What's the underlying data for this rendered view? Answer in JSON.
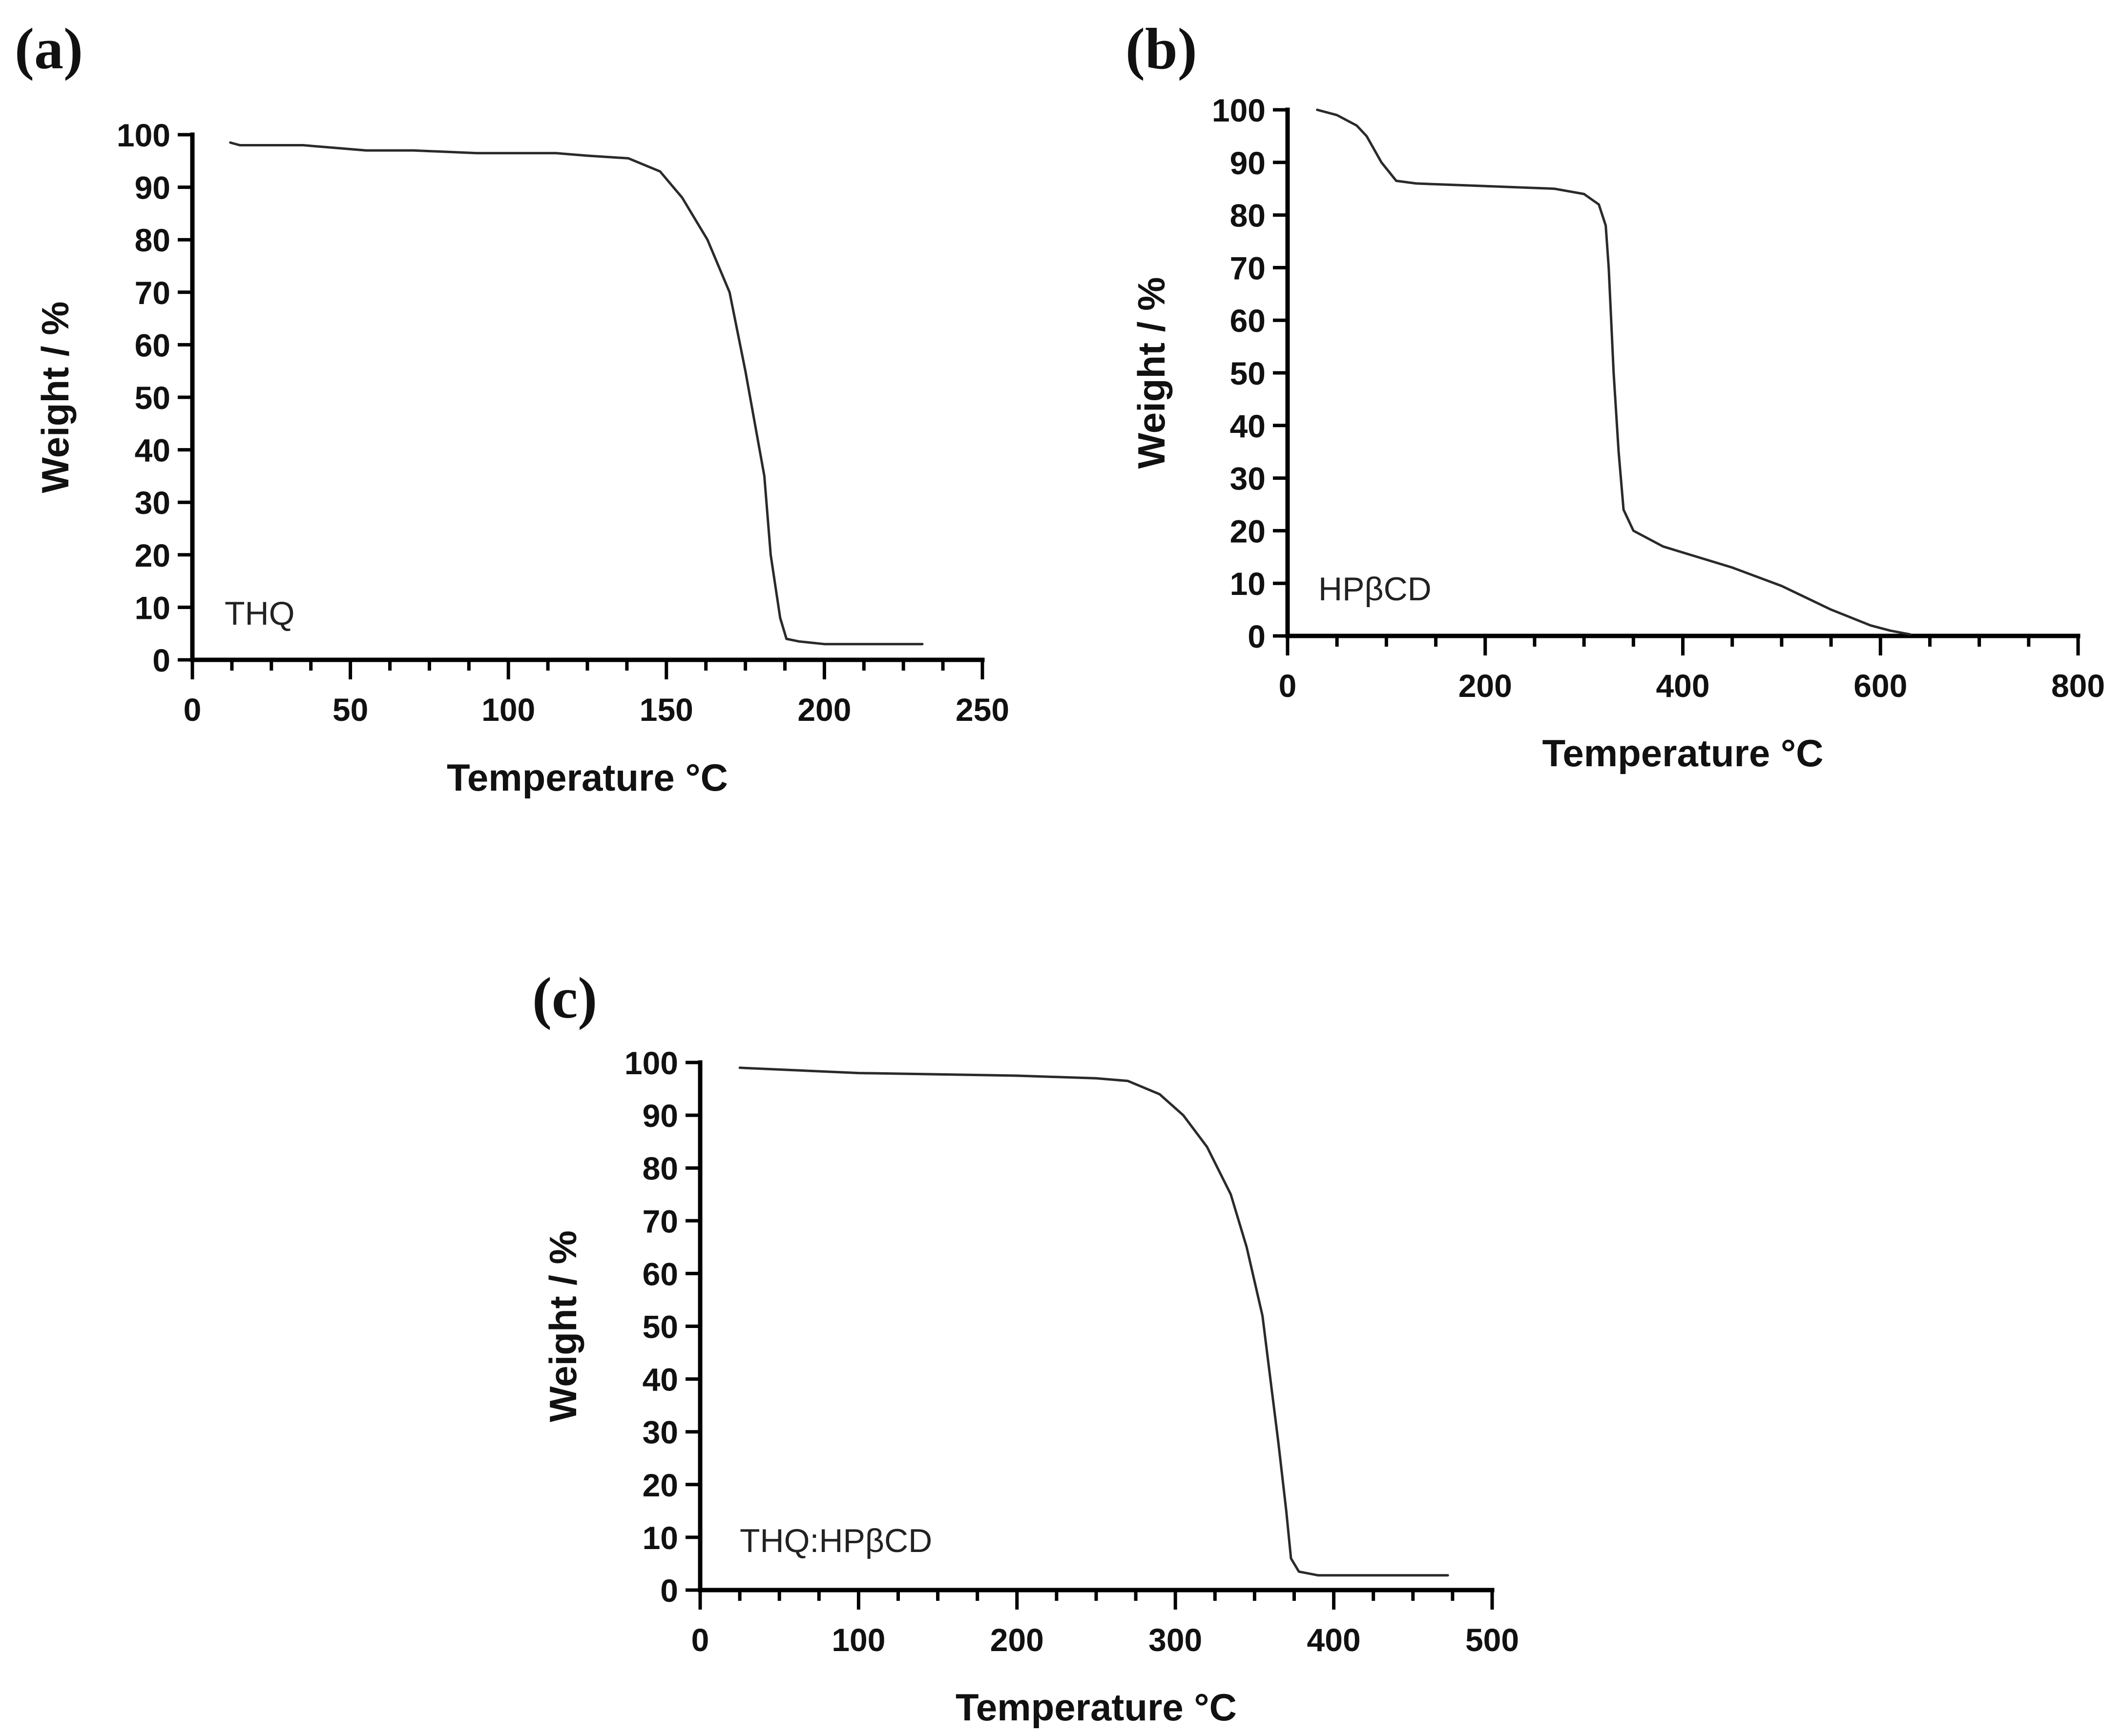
{
  "figure": {
    "panels": [
      {
        "label": "(a)",
        "annotation": "THQ",
        "xlabel": "Temperature °C",
        "ylabel": "Weight / %"
      },
      {
        "label": "(b)",
        "annotation": "HPβCD",
        "xlabel": "Temperature °C",
        "ylabel": "Weight / %"
      },
      {
        "label": "(c)",
        "annotation": "THQ:HPβCD",
        "xlabel": "Temperature °C",
        "ylabel": "Weight / %"
      }
    ]
  },
  "chart_data": [
    {
      "type": "line",
      "panel": "(a)",
      "title": "",
      "annotation": "THQ",
      "xlabel": "Temperature °C",
      "ylabel": "Weight / %",
      "xlim": [
        0,
        250
      ],
      "ylim": [
        0,
        100
      ],
      "xticks": [
        0,
        50,
        100,
        150,
        200,
        250
      ],
      "yticks": [
        0,
        10,
        20,
        30,
        40,
        50,
        60,
        70,
        80,
        90,
        100
      ],
      "x_minor_step": 12.5,
      "grid": false,
      "legend": null,
      "series": [
        {
          "name": "THQ",
          "color": "#2a2a2a",
          "x": [
            12,
            15,
            35,
            45,
            55,
            70,
            90,
            115,
            125,
            138,
            148,
            155,
            163,
            170,
            175,
            178,
            181,
            183,
            186,
            188,
            192,
            200,
            231
          ],
          "y": [
            98.5,
            98,
            98,
            97.5,
            97,
            97,
            96.5,
            96.5,
            96,
            95.5,
            93,
            88,
            80,
            70,
            55,
            45,
            35,
            20,
            8,
            4,
            3.5,
            3,
            3
          ]
        }
      ]
    },
    {
      "type": "line",
      "panel": "(b)",
      "title": "",
      "annotation": "HPβCD",
      "xlabel": "Temperature °C",
      "ylabel": "Weight / %",
      "xlim": [
        0,
        800
      ],
      "ylim": [
        0,
        100
      ],
      "xticks": [
        0,
        200,
        400,
        600,
        800
      ],
      "yticks": [
        0,
        10,
        20,
        30,
        40,
        50,
        60,
        70,
        80,
        90,
        100
      ],
      "x_minor_step": 50,
      "grid": false,
      "legend": null,
      "series": [
        {
          "name": "HPβCD",
          "color": "#2a2a2a",
          "x": [
            30,
            50,
            70,
            80,
            95,
            110,
            130,
            200,
            270,
            300,
            315,
            322,
            325,
            330,
            335,
            340,
            350,
            380,
            450,
            500,
            550,
            590,
            610,
            630
          ],
          "y": [
            100,
            99,
            97,
            95,
            90,
            86.5,
            86,
            85.5,
            85,
            84,
            82,
            78,
            70,
            50,
            35,
            24,
            20,
            17,
            13,
            9.5,
            5,
            2,
            1,
            0.3
          ]
        }
      ]
    },
    {
      "type": "line",
      "panel": "(c)",
      "title": "",
      "annotation": "THQ:HPβCD",
      "xlabel": "Temperature °C",
      "ylabel": "Weight / %",
      "xlim": [
        0,
        500
      ],
      "ylim": [
        0,
        100
      ],
      "xticks": [
        0,
        100,
        200,
        300,
        400,
        500
      ],
      "yticks": [
        0,
        10,
        20,
        30,
        40,
        50,
        60,
        70,
        80,
        90,
        100
      ],
      "x_minor_step": 25,
      "grid": false,
      "legend": null,
      "series": [
        {
          "name": "THQ:HPβCD",
          "color": "#2a2a2a",
          "x": [
            25,
            100,
            200,
            250,
            270,
            290,
            305,
            320,
            335,
            345,
            355,
            360,
            365,
            370,
            373,
            378,
            390,
            472
          ],
          "y": [
            99,
            98,
            97.5,
            97,
            96.5,
            94,
            90,
            84,
            75,
            65,
            52,
            40,
            28,
            15,
            6,
            3.5,
            2.8,
            2.8
          ]
        }
      ]
    }
  ]
}
